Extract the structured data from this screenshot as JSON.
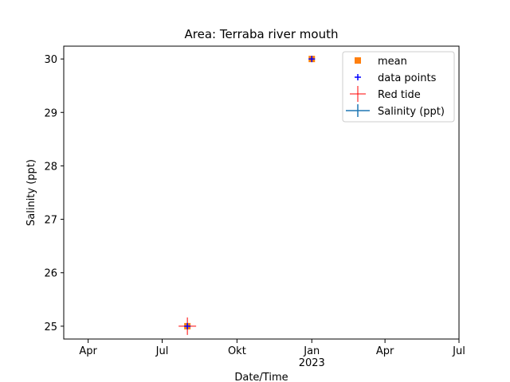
{
  "chart_data": {
    "type": "scatter",
    "title": "Area: Terraba river mouth",
    "x_label": "Date/Time",
    "y_label": "Salinity (ppt)",
    "xlim": [
      "2022-03-02",
      "2023-07-01"
    ],
    "xticks": [
      {
        "value": "2022-04-01",
        "label": "Apr"
      },
      {
        "value": "2022-07-01",
        "label": "Jul"
      },
      {
        "value": "2022-10-01",
        "label": "Okt"
      },
      {
        "value": "2023-01-01",
        "label": "Jan\n2023"
      },
      {
        "value": "2023-04-01",
        "label": "Apr"
      },
      {
        "value": "2023-07-01",
        "label": "Jul"
      }
    ],
    "ylim": [
      24.76,
      30.24
    ],
    "yticks": [
      25,
      26,
      27,
      28,
      29,
      30
    ],
    "legend": "upper right",
    "series": [
      {
        "name": "mean",
        "color": "#ff7f0e",
        "marker": "square",
        "x": [
          "2022-08-01",
          "2023-01-01"
        ],
        "values": [
          25,
          30
        ]
      },
      {
        "name": "data points",
        "color": "#0000ff",
        "marker": "plus",
        "x": [
          "2022-08-01",
          "2023-01-01"
        ],
        "values": [
          25,
          30
        ]
      },
      {
        "name": "Red tide",
        "color": "#ff0000",
        "marker": "bigplus",
        "x": [
          "2022-08-01"
        ],
        "values": [
          25
        ]
      },
      {
        "name": "Salinity (ppt)",
        "color": "#1f77b4",
        "marker": "errorbar",
        "x": [
          "2022-08-01",
          "2023-01-01"
        ],
        "values": [
          25,
          30
        ]
      }
    ]
  }
}
